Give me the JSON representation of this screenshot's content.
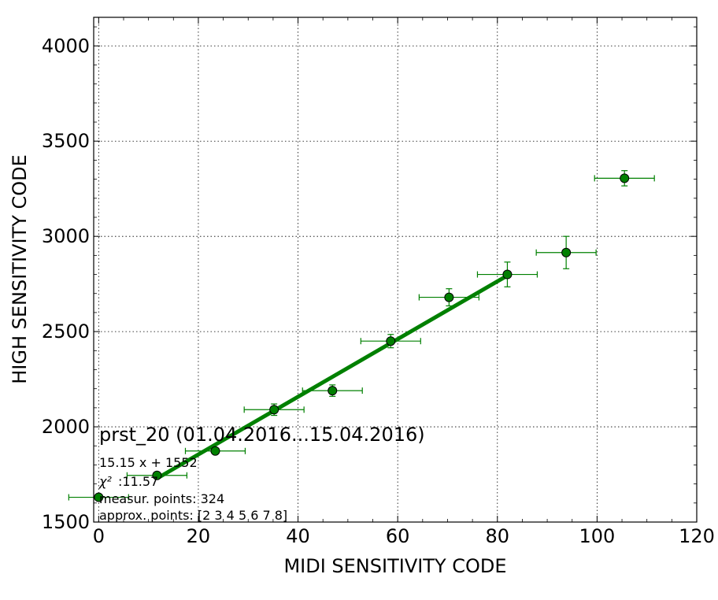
{
  "chart_data": {
    "type": "scatter",
    "xlabel": "MIDI SENSITIVITY CODE",
    "ylabel": "HIGH SENSITIVITY CODE",
    "xlim": [
      -1,
      120
    ],
    "ylim": [
      1500,
      4150
    ],
    "x_ticks": [
      0,
      20,
      40,
      60,
      80,
      100,
      120
    ],
    "y_ticks": [
      1500,
      2000,
      2500,
      3000,
      3500,
      4000
    ],
    "grid": true,
    "colors": {
      "points": "#008000",
      "fit": "#008000",
      "frame": "#000000",
      "grid": "#000000"
    },
    "series": [
      {
        "points": [
          {
            "x": 0,
            "y": 1630,
            "xerr": 6,
            "yerr": 0
          },
          {
            "x": 11.7,
            "y": 1745,
            "xerr": 6,
            "yerr": 10
          },
          {
            "x": 23.4,
            "y": 1873,
            "xerr": 6,
            "yerr": 10
          },
          {
            "x": 35.2,
            "y": 2090,
            "xerr": 6,
            "yerr": 30
          },
          {
            "x": 46.9,
            "y": 2190,
            "xerr": 6,
            "yerr": 30
          },
          {
            "x": 58.6,
            "y": 2450,
            "xerr": 6,
            "yerr": 35
          },
          {
            "x": 70.3,
            "y": 2680,
            "xerr": 6,
            "yerr": 45
          },
          {
            "x": 82.0,
            "y": 2800,
            "xerr": 6,
            "yerr": 65
          },
          {
            "x": 93.8,
            "y": 2915,
            "xerr": 6,
            "yerr": 85
          },
          {
            "x": 105.5,
            "y": 3305,
            "xerr": 6,
            "yerr": 40
          }
        ]
      }
    ],
    "fit_line": {
      "x": [
        11.7,
        82.0
      ],
      "y": [
        1729,
        2794
      ]
    },
    "annotations": {
      "title": "prst_20 (01.04.2016...15.04.2016)",
      "equation": "15.15 x + 1552",
      "chi2_label": "χ²",
      "chi2_value": ":11.57",
      "measur_points": "measur. points: 324",
      "approx_points": "approx. points: [2 3 4 5 6 7 8]"
    }
  }
}
